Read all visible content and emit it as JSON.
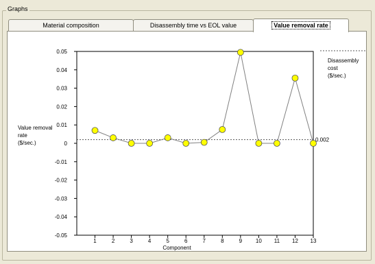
{
  "group": {
    "title": "Graphs"
  },
  "tabs": [
    {
      "label": "Material composition",
      "active": false
    },
    {
      "label": "Disassembly time vs EOL value",
      "active": false
    },
    {
      "label": "Value removal rate",
      "active": true
    }
  ],
  "legend": {
    "line1": "Disassembly",
    "line2": "cost",
    "line3": "($/sec.)"
  },
  "y_axis_label": {
    "line1": "Value removal",
    "line2": "rate",
    "line3": "($/sec.)"
  },
  "reference_label": "0.002",
  "chart_data": {
    "type": "line",
    "xlabel": "Component",
    "ylabel": "Value removal rate ($/sec.)",
    "x": [
      1,
      2,
      3,
      4,
      5,
      6,
      7,
      8,
      9,
      10,
      11,
      12,
      13
    ],
    "series": [
      {
        "name": "",
        "values": [
          0.007,
          0.003,
          0.0,
          0.0,
          0.003,
          0.0,
          0.0005,
          0.0075,
          0.0495,
          0.0,
          0.0,
          0.0355,
          0.0
        ]
      }
    ],
    "reference_line": {
      "name": "Disassembly cost ($/sec.)",
      "value": 0.002
    },
    "yticks": [
      0.05,
      0.04,
      0.03,
      0.02,
      0.01,
      0,
      -0.01,
      -0.02,
      -0.03,
      -0.04,
      -0.05
    ],
    "ytick_labels": [
      "0.05",
      "0.04",
      "0.03",
      "0.02",
      "0.01",
      "0",
      "-0.01",
      "-0.02",
      "-0.03",
      "-0.04",
      "-0.05"
    ],
    "xlim": [
      0,
      13
    ],
    "ylim": [
      -0.05,
      0.05
    ],
    "grid": false,
    "colors": {
      "line": "#808080",
      "marker": "#ffff00",
      "marker_edge": "#555555",
      "reference": "#555555"
    }
  }
}
